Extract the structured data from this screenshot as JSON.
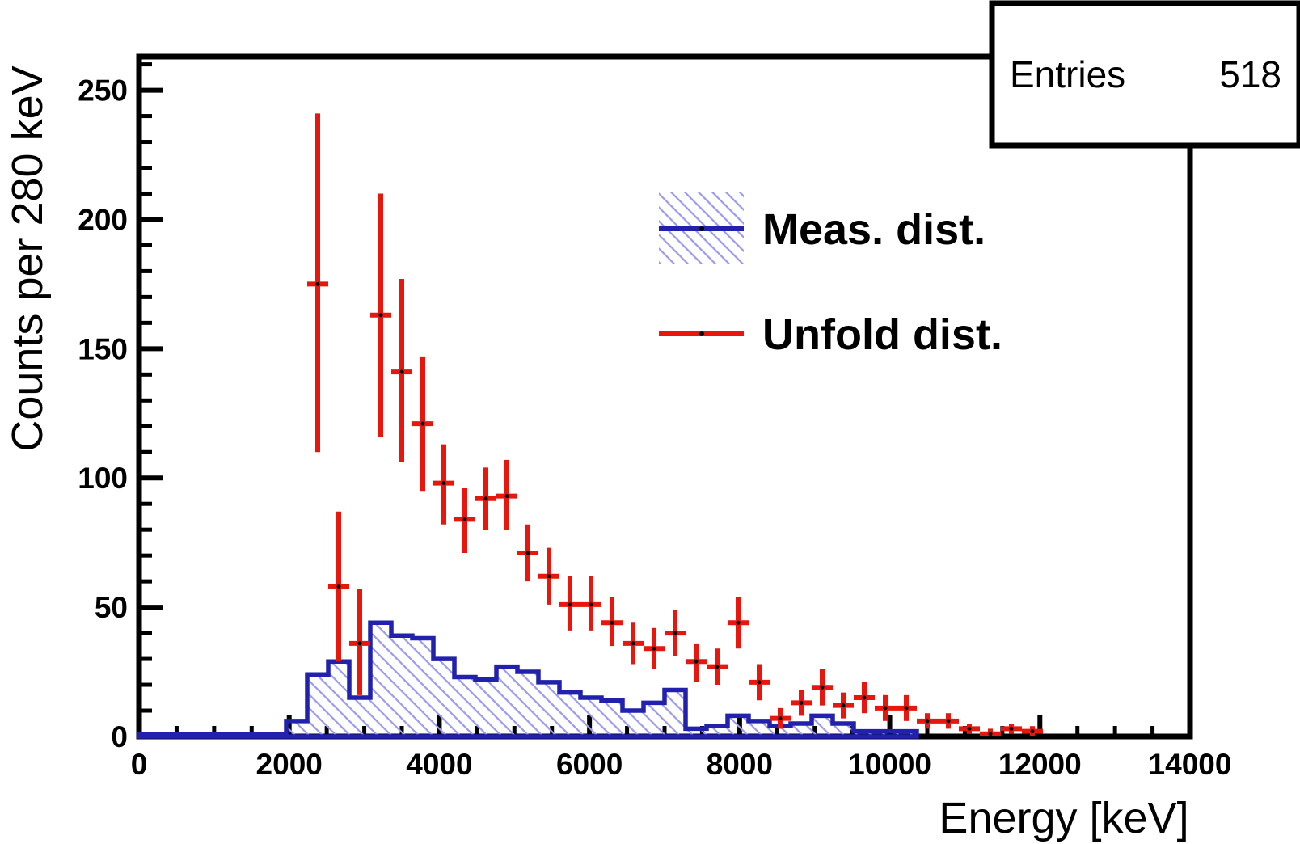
{
  "chart_data": {
    "type": "histogram_with_errorbars",
    "title": "",
    "xlabel": "Energy [keV]",
    "ylabel": "Counts per 280 keV",
    "xlim": [
      0,
      14000
    ],
    "ylim": [
      0,
      263
    ],
    "x_major_ticks": [
      "0",
      "2000",
      "4000",
      "6000",
      "8000",
      "10000",
      "12000",
      "14000"
    ],
    "x_minor_step": 500,
    "y_major_ticks": [
      "0",
      "50",
      "100",
      "150",
      "200",
      "250"
    ],
    "y_minor_step": 10,
    "bin_width": 280,
    "grid": "off",
    "legend_position": "top-right-inside",
    "stats_box": {
      "label": "Entries",
      "value": "518"
    },
    "colors": {
      "hist_line": "#2121ad",
      "hist_hatch": "#9a9af0",
      "errorbar": "#e8160c",
      "marker": "#000000",
      "frame": "#000000"
    },
    "series": [
      {
        "name": "Meas. dist.",
        "type": "step-histogram-hatched",
        "line_color": "#2121ad",
        "hatch_color": "#9a9af0",
        "bin_start": 0,
        "values": [
          1,
          1,
          1,
          1,
          1,
          1,
          1,
          6,
          24,
          29,
          15,
          44,
          39,
          38,
          30,
          23,
          22,
          27,
          25,
          21,
          17,
          15,
          14,
          10,
          13,
          18,
          3,
          4,
          8,
          6,
          4,
          5,
          8,
          5,
          2,
          2,
          2
        ]
      },
      {
        "name": "Unfold dist.",
        "type": "errorbar",
        "color": "#e8160c",
        "marker_color": "#000000",
        "points": [
          [
            2380,
            175,
            65,
            66
          ],
          [
            2660,
            58,
            29,
            29
          ],
          [
            2940,
            36,
            20,
            21
          ],
          [
            3220,
            163,
            47,
            47
          ],
          [
            3500,
            141,
            35,
            36
          ],
          [
            3780,
            121,
            26,
            26
          ],
          [
            4060,
            98,
            16,
            15
          ],
          [
            4340,
            84,
            13,
            12
          ],
          [
            4620,
            92,
            12,
            12
          ],
          [
            4900,
            93,
            13,
            14
          ],
          [
            5180,
            71,
            11,
            11
          ],
          [
            5460,
            62,
            11,
            11
          ],
          [
            5740,
            51,
            10,
            11
          ],
          [
            6020,
            51,
            10,
            11
          ],
          [
            6300,
            44,
            9,
            10
          ],
          [
            6580,
            36,
            8,
            8
          ],
          [
            6860,
            34,
            8,
            8
          ],
          [
            7140,
            40,
            9,
            9
          ],
          [
            7420,
            29,
            8,
            7
          ],
          [
            7700,
            27,
            7,
            7
          ],
          [
            7980,
            44,
            10,
            10
          ],
          [
            8260,
            21,
            7,
            7
          ],
          [
            8540,
            7,
            4,
            4
          ],
          [
            8820,
            13,
            5,
            5
          ],
          [
            9100,
            19,
            7,
            7
          ],
          [
            9380,
            12,
            5,
            5
          ],
          [
            9660,
            15,
            6,
            6
          ],
          [
            9940,
            11,
            5,
            5
          ],
          [
            10220,
            11,
            5,
            5
          ],
          [
            10500,
            6,
            3,
            3
          ],
          [
            10780,
            6,
            3,
            3
          ],
          [
            11060,
            3,
            2,
            2
          ],
          [
            11340,
            1,
            1,
            2
          ],
          [
            11620,
            3,
            2,
            2
          ],
          [
            11900,
            2,
            2,
            2
          ]
        ]
      }
    ]
  }
}
